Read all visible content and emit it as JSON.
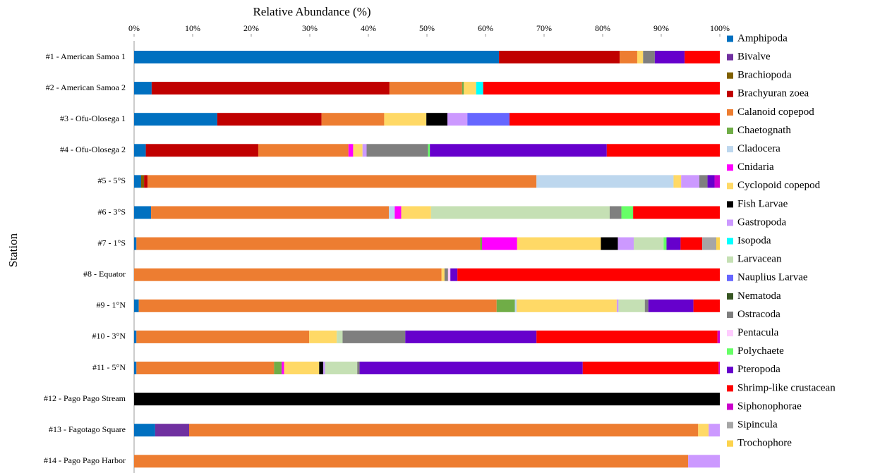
{
  "chart_data": {
    "type": "stacked_barh",
    "xlabel": "Relative Abundance (%)",
    "ylabel": "Station",
    "categories": [
      "#1 - American Samoa 1",
      "#2 - American Samoa 2",
      "#3 - Ofu-Olosega 1",
      "#4 - Ofu-Olosega 2",
      "#5 - 5°S",
      "#6 - 3°S",
      "#7 - 1°S",
      "#8 - Equator",
      "#9 - 1°N",
      "#10 - 3°N",
      "#11 - 5°N",
      "#12 - Pago Pago Stream",
      "#13 - Fagotago Square",
      "#14 - Pago Pago Harbor"
    ],
    "xlim": [
      0,
      100
    ],
    "xticks": [
      {
        "value": 0,
        "label": "0%"
      },
      {
        "value": 10,
        "label": "10%"
      },
      {
        "value": 20,
        "label": "20%"
      },
      {
        "value": 30,
        "label": "30%"
      },
      {
        "value": 40,
        "label": "40%"
      },
      {
        "value": 50,
        "label": "50%"
      },
      {
        "value": 60,
        "label": "60%"
      },
      {
        "value": 70,
        "label": "70%"
      },
      {
        "value": 80,
        "label": "80%"
      },
      {
        "value": 90,
        "label": "90%"
      },
      {
        "value": 100,
        "label": "100%"
      }
    ],
    "legend": "right",
    "series": [
      {
        "name": "Amphipoda",
        "color": "#0070c0",
        "values": [
          62.3,
          3.0,
          14.2,
          2.0,
          1.2,
          2.9,
          0.4,
          0,
          0.8,
          0.4,
          0.4,
          0,
          3.6,
          0
        ]
      },
      {
        "name": "Bivalve",
        "color": "#7030a0",
        "values": [
          0,
          0,
          0,
          0,
          0,
          0,
          0,
          0,
          0,
          0,
          0,
          0,
          5.8,
          0
        ]
      },
      {
        "name": "Brachiopoda",
        "color": "#806000",
        "values": [
          0,
          0,
          0,
          0,
          0.5,
          0,
          0,
          0,
          0,
          0,
          0,
          0,
          0,
          0
        ]
      },
      {
        "name": "Brachyuran zoea",
        "color": "#c00000",
        "values": [
          20.6,
          40.6,
          17.8,
          19.2,
          0.6,
          0,
          0,
          0,
          0,
          0,
          0,
          0,
          0,
          0
        ]
      },
      {
        "name": "Calanoid copepod",
        "color": "#ed7d31",
        "values": [
          3.0,
          12.4,
          10.7,
          15.4,
          66.4,
          40.6,
          58.7,
          52.5,
          61.1,
          29.5,
          23.5,
          0,
          86.9,
          94.6
        ]
      },
      {
        "name": "Chaetognath",
        "color": "#70ad47",
        "values": [
          0,
          0.3,
          0,
          0,
          0,
          0,
          0.3,
          0,
          3.1,
          0,
          1.3,
          0,
          0,
          0
        ]
      },
      {
        "name": "Cladocera",
        "color": "#bdd7ee",
        "values": [
          0,
          0,
          0,
          0,
          23.4,
          1.0,
          0,
          0,
          0.3,
          0,
          0,
          0,
          0,
          0
        ]
      },
      {
        "name": "Cnidaria",
        "color": "#ff00ff",
        "values": [
          0,
          0,
          0,
          0.8,
          0,
          1.1,
          6.0,
          0,
          0,
          0,
          0.4,
          0,
          0,
          0
        ]
      },
      {
        "name": "Cyclopoid copepod",
        "color": "#ffd966",
        "values": [
          1.0,
          2.1,
          7.2,
          1.6,
          1.3,
          5.1,
          14.3,
          0.5,
          17.1,
          4.7,
          6.0,
          0,
          1.8,
          0
        ]
      },
      {
        "name": "Fish Larvae",
        "color": "#000000",
        "values": [
          0,
          0,
          3.6,
          0,
          0,
          0,
          2.9,
          0,
          0,
          0,
          0.7,
          100,
          0,
          0
        ]
      },
      {
        "name": "Gastropoda",
        "color": "#cc99ff",
        "values": [
          0,
          0,
          3.4,
          0.7,
          3.1,
          0,
          2.7,
          0,
          0.3,
          0,
          0.3,
          0,
          1.9,
          5.4
        ]
      },
      {
        "name": "Isopoda",
        "color": "#00ffff",
        "values": [
          0,
          1.2,
          0,
          0,
          0,
          0,
          0,
          0,
          0,
          0,
          0,
          0,
          0,
          0
        ]
      },
      {
        "name": "Larvacean",
        "color": "#c5e0b4",
        "values": [
          0,
          0,
          0,
          0,
          0,
          30.5,
          5.1,
          0,
          4.5,
          1.0,
          5.5,
          0,
          0,
          0
        ]
      },
      {
        "name": "Nauplius Larvae",
        "color": "#6666ff",
        "values": [
          0,
          0,
          7.2,
          0,
          0,
          0,
          0,
          0,
          0,
          0,
          0,
          0,
          0,
          0
        ]
      },
      {
        "name": "Nematoda",
        "color": "#375623",
        "values": [
          0,
          0,
          0,
          0,
          0,
          0,
          0,
          0,
          0,
          0,
          0,
          0,
          0,
          0
        ]
      },
      {
        "name": "Ostracoda",
        "color": "#7f7f7f",
        "values": [
          2.0,
          0,
          0,
          10.5,
          1.4,
          2.0,
          0,
          0.6,
          0.6,
          10.7,
          0.4,
          0,
          0,
          0
        ]
      },
      {
        "name": "Pentacula",
        "color": "#ffccff",
        "values": [
          0,
          0,
          0,
          0,
          0,
          0,
          0,
          0.4,
          0,
          0,
          0,
          0,
          0,
          0
        ]
      },
      {
        "name": "Polychaete",
        "color": "#66ff66",
        "values": [
          0,
          0,
          0,
          0.3,
          0,
          2.0,
          0.5,
          0,
          0,
          0,
          0,
          0,
          0,
          0
        ]
      },
      {
        "name": "Pteropoda",
        "color": "#6600cc",
        "values": [
          5.1,
          0,
          0,
          30.2,
          1.2,
          0,
          2.4,
          1.2,
          7.7,
          22.4,
          38.1,
          0,
          0,
          0
        ]
      },
      {
        "name": "Shrimp-like crustacean",
        "color": "#ff0000",
        "values": [
          6.0,
          40.4,
          35.9,
          19.3,
          0,
          14.8,
          3.7,
          44.8,
          4.5,
          30.9,
          23.2,
          0,
          0,
          0
        ]
      },
      {
        "name": "Siphonophorae",
        "color": "#cc00cc",
        "values": [
          0,
          0,
          0,
          0,
          0.9,
          0,
          0,
          0,
          0,
          0.4,
          0.2,
          0,
          0,
          0
        ]
      },
      {
        "name": "Sipincula",
        "color": "#a6a6a6",
        "values": [
          0,
          0,
          0,
          0,
          0,
          0,
          2.4,
          0,
          0,
          0,
          0,
          0,
          0,
          0
        ]
      },
      {
        "name": "Trochophore",
        "color": "#fcd34d",
        "values": [
          0,
          0,
          0,
          0,
          0,
          0,
          0.6,
          0,
          0,
          0,
          0,
          0,
          0,
          0
        ]
      }
    ]
  }
}
